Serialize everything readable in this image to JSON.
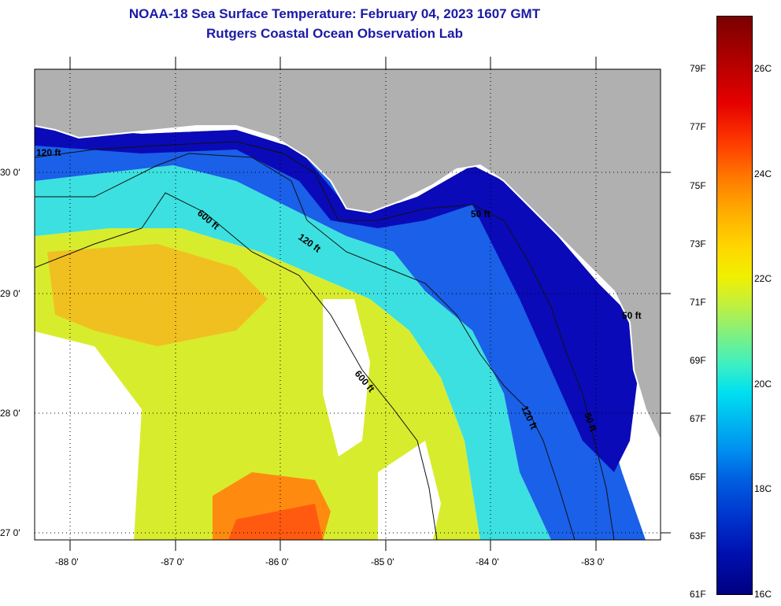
{
  "header": {
    "title": "NOAA-18 Sea Surface Temperature:  February 04, 2023 1607 GMT",
    "subtitle": "Rutgers Coastal Ocean Observation Lab"
  },
  "map": {
    "lat_labels": [
      "30 0'",
      "29 0'",
      "28 0'",
      "27 0'"
    ],
    "lon_labels": [
      "-88 0'",
      "-87 0'",
      "-86 0'",
      "-85 0'",
      "-84 0'",
      "-83 0'"
    ],
    "contour_labels": [
      "600 ft",
      "120 ft",
      "50 ft",
      "600 ft",
      "120 ft",
      "50 ft",
      "120 ft",
      "50 ft"
    ],
    "land_color": "#b0b0b0",
    "nodata_color": "#ffffff"
  },
  "colorbar": {
    "fahrenheit": [
      "79F",
      "77F",
      "75F",
      "73F",
      "71F",
      "69F",
      "67F",
      "65F",
      "63F",
      "61F"
    ],
    "celsius": [
      "26C",
      "24C",
      "22C",
      "20C",
      "18C",
      "16C"
    ],
    "min_f": 61,
    "max_f": 81
  }
}
